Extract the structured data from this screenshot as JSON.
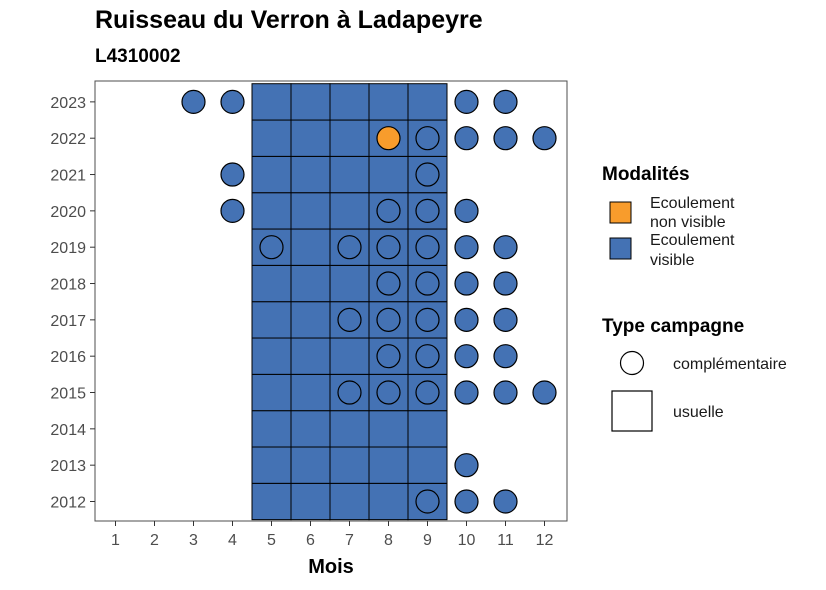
{
  "chart_data": {
    "type": "heatmap",
    "title": "Ruisseau du Verron à Ladapeyre",
    "subtitle": "L4310002",
    "xlabel": "Mois",
    "ylabel": "",
    "x_ticks": [
      "1",
      "2",
      "3",
      "4",
      "5",
      "6",
      "7",
      "8",
      "9",
      "10",
      "11",
      "12"
    ],
    "y_ticks": [
      "2012",
      "2013",
      "2014",
      "2015",
      "2016",
      "2017",
      "2018",
      "2019",
      "2020",
      "2021",
      "2022",
      "2023"
    ],
    "colors": {
      "visible": "#4472b4",
      "non_visible": "#f89c2c",
      "outline": "#000000"
    },
    "legend_modalites": {
      "title": "Modalités",
      "items": [
        {
          "key": "non_visible",
          "line1": "Ecoulement",
          "line2": "non visible"
        },
        {
          "key": "visible",
          "line1": "Ecoulement",
          "line2": "visible"
        }
      ]
    },
    "legend_campagne": {
      "title": "Type campagne",
      "items": [
        {
          "shape": "circle",
          "label": "complémentaire"
        },
        {
          "shape": "square",
          "label": "usuelle"
        }
      ]
    },
    "usuelle": {
      "months": [
        5,
        6,
        7,
        8,
        9
      ],
      "years": [
        2012,
        2013,
        2014,
        2015,
        2016,
        2017,
        2018,
        2019,
        2020,
        2021,
        2022,
        2023
      ],
      "modalite": "visible"
    },
    "complementaire": [
      {
        "year": 2023,
        "month": 3,
        "modalite": "visible"
      },
      {
        "year": 2023,
        "month": 4,
        "modalite": "visible"
      },
      {
        "year": 2023,
        "month": 10,
        "modalite": "visible"
      },
      {
        "year": 2023,
        "month": 11,
        "modalite": "visible"
      },
      {
        "year": 2022,
        "month": 8,
        "modalite": "non_visible"
      },
      {
        "year": 2022,
        "month": 9,
        "modalite": "visible"
      },
      {
        "year": 2022,
        "month": 10,
        "modalite": "visible"
      },
      {
        "year": 2022,
        "month": 11,
        "modalite": "visible"
      },
      {
        "year": 2022,
        "month": 12,
        "modalite": "visible"
      },
      {
        "year": 2021,
        "month": 4,
        "modalite": "visible"
      },
      {
        "year": 2021,
        "month": 9,
        "modalite": "visible"
      },
      {
        "year": 2020,
        "month": 4,
        "modalite": "visible"
      },
      {
        "year": 2020,
        "month": 8,
        "modalite": "visible"
      },
      {
        "year": 2020,
        "month": 9,
        "modalite": "visible"
      },
      {
        "year": 2020,
        "month": 10,
        "modalite": "visible"
      },
      {
        "year": 2019,
        "month": 5,
        "modalite": "visible"
      },
      {
        "year": 2019,
        "month": 7,
        "modalite": "visible"
      },
      {
        "year": 2019,
        "month": 8,
        "modalite": "visible"
      },
      {
        "year": 2019,
        "month": 9,
        "modalite": "visible"
      },
      {
        "year": 2019,
        "month": 10,
        "modalite": "visible"
      },
      {
        "year": 2019,
        "month": 11,
        "modalite": "visible"
      },
      {
        "year": 2018,
        "month": 8,
        "modalite": "visible"
      },
      {
        "year": 2018,
        "month": 9,
        "modalite": "visible"
      },
      {
        "year": 2018,
        "month": 10,
        "modalite": "visible"
      },
      {
        "year": 2018,
        "month": 11,
        "modalite": "visible"
      },
      {
        "year": 2017,
        "month": 7,
        "modalite": "visible"
      },
      {
        "year": 2017,
        "month": 8,
        "modalite": "visible"
      },
      {
        "year": 2017,
        "month": 9,
        "modalite": "visible"
      },
      {
        "year": 2017,
        "month": 10,
        "modalite": "visible"
      },
      {
        "year": 2017,
        "month": 11,
        "modalite": "visible"
      },
      {
        "year": 2016,
        "month": 8,
        "modalite": "visible"
      },
      {
        "year": 2016,
        "month": 9,
        "modalite": "visible"
      },
      {
        "year": 2016,
        "month": 10,
        "modalite": "visible"
      },
      {
        "year": 2016,
        "month": 11,
        "modalite": "visible"
      },
      {
        "year": 2015,
        "month": 7,
        "modalite": "visible"
      },
      {
        "year": 2015,
        "month": 8,
        "modalite": "visible"
      },
      {
        "year": 2015,
        "month": 9,
        "modalite": "visible"
      },
      {
        "year": 2015,
        "month": 10,
        "modalite": "visible"
      },
      {
        "year": 2015,
        "month": 11,
        "modalite": "visible"
      },
      {
        "year": 2015,
        "month": 12,
        "modalite": "visible"
      },
      {
        "year": 2013,
        "month": 10,
        "modalite": "visible"
      },
      {
        "year": 2012,
        "month": 9,
        "modalite": "visible"
      },
      {
        "year": 2012,
        "month": 10,
        "modalite": "visible"
      },
      {
        "year": 2012,
        "month": 11,
        "modalite": "visible"
      }
    ]
  }
}
